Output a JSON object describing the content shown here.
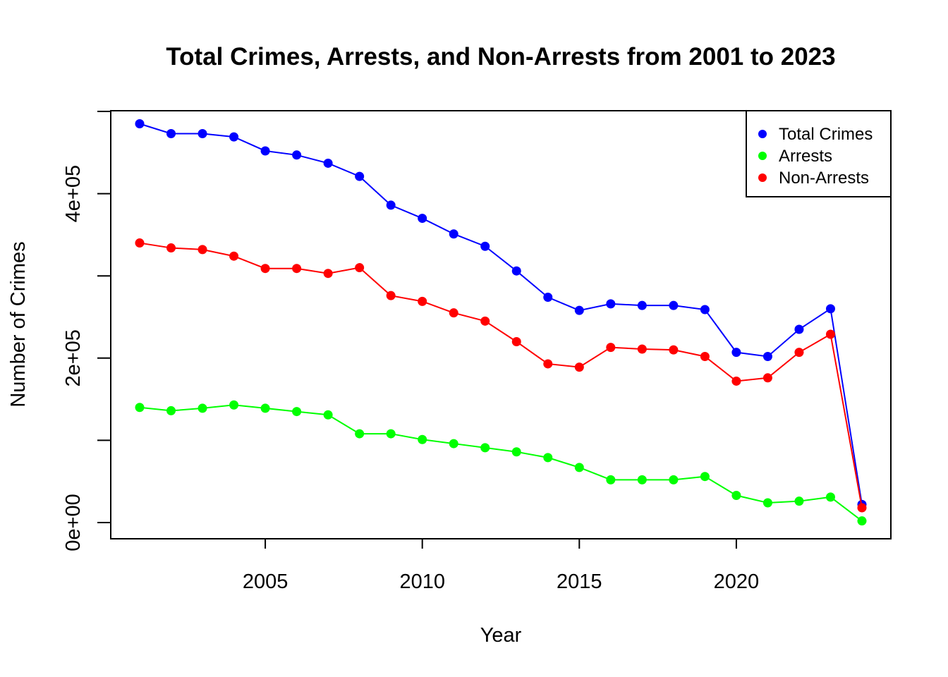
{
  "chart_data": {
    "type": "line",
    "title": "Total Crimes, Arrests, and Non-Arrests from 2001 to 2023",
    "xlabel": "Year",
    "ylabel": "Number of Crimes",
    "xlim": [
      2001,
      2024
    ],
    "ylim": [
      0,
      500000
    ],
    "x_ticks": [
      2005,
      2010,
      2015,
      2020
    ],
    "x_tick_labels": [
      "2005",
      "2010",
      "2015",
      "2020"
    ],
    "y_ticks": [
      0,
      100000,
      200000,
      300000,
      400000,
      500000
    ],
    "y_tick_labels": [
      "0e+00",
      "",
      "2e+05",
      "",
      "4e+05",
      ""
    ],
    "grid": false,
    "legend_position": "top-right",
    "x": [
      2001,
      2002,
      2003,
      2004,
      2005,
      2006,
      2007,
      2008,
      2009,
      2010,
      2011,
      2012,
      2013,
      2014,
      2015,
      2016,
      2017,
      2018,
      2019,
      2020,
      2021,
      2022,
      2023,
      2024
    ],
    "series": [
      {
        "name": "Total Crimes",
        "color": "#0000ff",
        "values": [
          485000,
          473000,
          473000,
          469000,
          452000,
          447000,
          437000,
          421000,
          386000,
          370000,
          351000,
          336000,
          306000,
          274000,
          258000,
          266000,
          264000,
          264000,
          259000,
          207000,
          202000,
          235000,
          260000,
          22000
        ]
      },
      {
        "name": "Arrests",
        "color": "#00ff00",
        "values": [
          140000,
          136000,
          139000,
          143000,
          139000,
          135000,
          131000,
          108000,
          108000,
          101000,
          96000,
          91000,
          86000,
          79000,
          67000,
          52000,
          52000,
          52000,
          56000,
          33000,
          24000,
          26000,
          31000,
          2000
        ]
      },
      {
        "name": "Non-Arrests",
        "color": "#ff0000",
        "values": [
          340000,
          334000,
          332000,
          324000,
          309000,
          309000,
          303000,
          310000,
          276000,
          269000,
          255000,
          245000,
          220000,
          193000,
          189000,
          213000,
          211000,
          210000,
          202000,
          172000,
          176000,
          207000,
          229000,
          18000
        ]
      }
    ]
  }
}
